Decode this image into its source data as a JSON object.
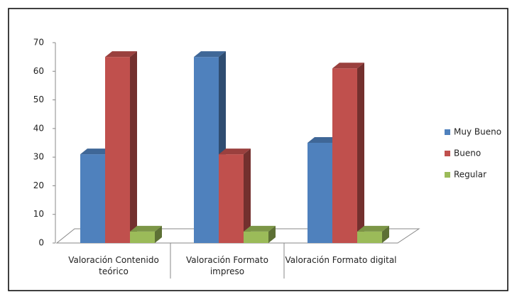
{
  "chart_data": {
    "type": "bar3d",
    "categories": [
      "Valoración Contenido teórico",
      "Valoración Formato impreso",
      "Valoración Formato digital"
    ],
    "series": [
      {
        "name": "Muy Bueno",
        "color": "#4f81bd",
        "values": [
          31,
          65,
          35
        ]
      },
      {
        "name": "Bueno",
        "color": "#c0504d",
        "values": [
          65,
          31,
          61
        ]
      },
      {
        "name": "Regular",
        "color": "#9bbb59",
        "values": [
          4,
          4,
          4
        ]
      }
    ],
    "ylim": [
      0,
      70
    ],
    "yticks": [
      0,
      10,
      20,
      30,
      40,
      50,
      60,
      70
    ],
    "legend": "right"
  }
}
